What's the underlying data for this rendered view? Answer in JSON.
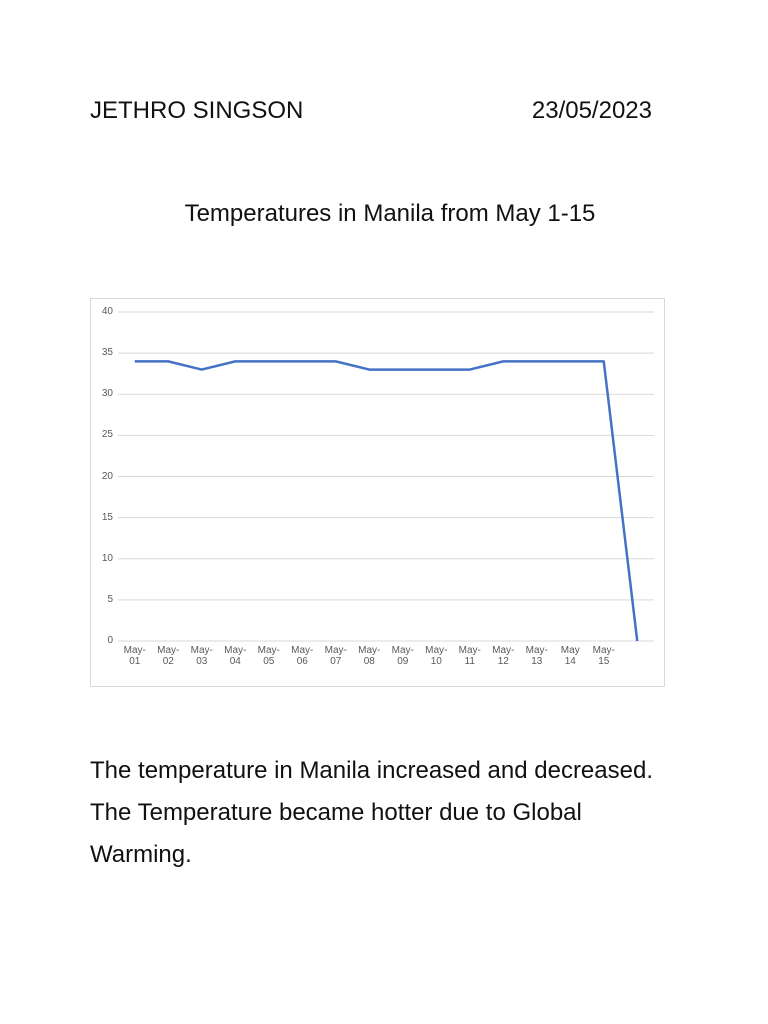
{
  "header": {
    "name": "JETHRO SINGSON",
    "date": "23/05/2023"
  },
  "chart_data": {
    "type": "line",
    "title": "Temperatures in Manila from May 1-15",
    "categories": [
      "May-01",
      "May-02",
      "May-03",
      "May-04",
      "May-05",
      "May-06",
      "May-07",
      "May-08",
      "May-09",
      "May-10",
      "May-11",
      "May-12",
      "May-13",
      "May 14",
      "May-15",
      null
    ],
    "series": [
      {
        "color": "#4472c4",
        "values": [
          34,
          34,
          33,
          34,
          34,
          34,
          34,
          33,
          33,
          33,
          33,
          34,
          34,
          34,
          34,
          0
        ]
      }
    ],
    "ylim": [
      0,
      40
    ],
    "yticks": [
      0,
      5,
      10,
      15,
      20,
      25,
      30,
      35,
      40
    ],
    "grid": true
  },
  "body": {
    "text": "The temperature in Manila increased and decreased. The Temperature became hotter due to Global Warming."
  }
}
